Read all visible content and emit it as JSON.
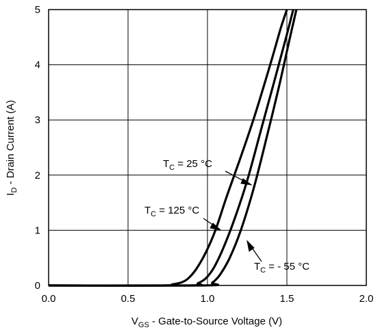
{
  "chart_data": {
    "type": "line",
    "title": "",
    "xlabel": {
      "main": "V",
      "sub": "GS",
      "rest": " - Gate-to-Source Voltage (V)"
    },
    "ylabel": {
      "main": "I",
      "sub": "D",
      "rest": " - Drain Current (A)"
    },
    "xlim": [
      0,
      2
    ],
    "ylim": [
      0,
      5
    ],
    "grid": true,
    "x_ticks": [
      0,
      0.5,
      1,
      1.5,
      2
    ],
    "x_tick_labels": [
      "0.0",
      "0.5",
      "1.0",
      "1.5",
      "2.0"
    ],
    "y_ticks": [
      0,
      1,
      2,
      3,
      4,
      5
    ],
    "y_tick_labels": [
      "0",
      "1",
      "2",
      "3",
      "4",
      "5"
    ],
    "series": [
      {
        "temperature_label": "TC = 125 °C",
        "x": [
          0,
          0.7,
          0.78,
          0.84,
          0.88,
          0.93,
          0.99,
          1.05,
          1.12,
          1.2,
          1.3,
          1.4,
          1.46,
          1.5
        ],
        "y": [
          0,
          0,
          0.02,
          0.06,
          0.13,
          0.3,
          0.6,
          1.0,
          1.6,
          2.25,
          3.1,
          4.05,
          4.65,
          5.0
        ]
      },
      {
        "temperature_label": "TC = 25 °C",
        "x": [
          0,
          0.88,
          0.94,
          0.99,
          1.04,
          1.1,
          1.17,
          1.25,
          1.34,
          1.43,
          1.5,
          1.54
        ],
        "y": [
          0,
          0,
          0.04,
          0.13,
          0.32,
          0.68,
          1.2,
          1.9,
          2.85,
          3.8,
          4.55,
          5.0
        ]
      },
      {
        "temperature_label": "TC = - 55 °C",
        "x": [
          0,
          0.98,
          1.03,
          1.08,
          1.14,
          1.21,
          1.29,
          1.37,
          1.45,
          1.52,
          1.56
        ],
        "y": [
          0,
          0,
          0.05,
          0.2,
          0.5,
          1.0,
          1.75,
          2.65,
          3.6,
          4.5,
          5.0
        ]
      }
    ],
    "annotations": [
      {
        "main": "T",
        "sub": "C",
        "rest": " = 25 °C"
      },
      {
        "main": "T",
        "sub": "C",
        "rest": " = 125 °C"
      },
      {
        "main": "T",
        "sub": "C",
        "rest": " = - 55 °C"
      }
    ]
  }
}
